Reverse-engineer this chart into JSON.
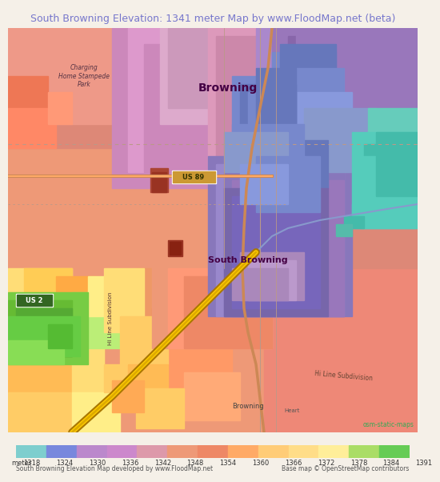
{
  "title": "South Browning Elevation: 1341 meter Map by www.FloodMap.net (beta)",
  "title_color": "#7777cc",
  "title_fontsize": 9.0,
  "background_color": "#f5f0e8",
  "colorbar_values": [
    1318,
    1324,
    1330,
    1336,
    1342,
    1348,
    1354,
    1360,
    1366,
    1372,
    1378,
    1384,
    1391
  ],
  "colorbar_colors": [
    "#7ecece",
    "#7888dd",
    "#bb88cc",
    "#cc88cc",
    "#dd99aa",
    "#ee9977",
    "#ee8866",
    "#ffaa66",
    "#ffcc77",
    "#ffdd88",
    "#ffee99",
    "#aadd66",
    "#66cc55"
  ],
  "footer_left": "South Browning Elevation Map developed by www.FloodMap.net",
  "footer_right": "Base map © OpenStreetMap contributors",
  "osm_label": "osm-static-maps",
  "labels": {
    "browning": "Browning",
    "south_browning": "South Browning",
    "us89": "US 89",
    "us2": "US 2",
    "charging_home": "Charging\nHome Stampede\nPark",
    "hi_line_bottom": "Hi Line Subdivision",
    "hi_line_left": "Hi Line Subdivision",
    "browning_bottom": "Browning",
    "heart": "Heart"
  }
}
